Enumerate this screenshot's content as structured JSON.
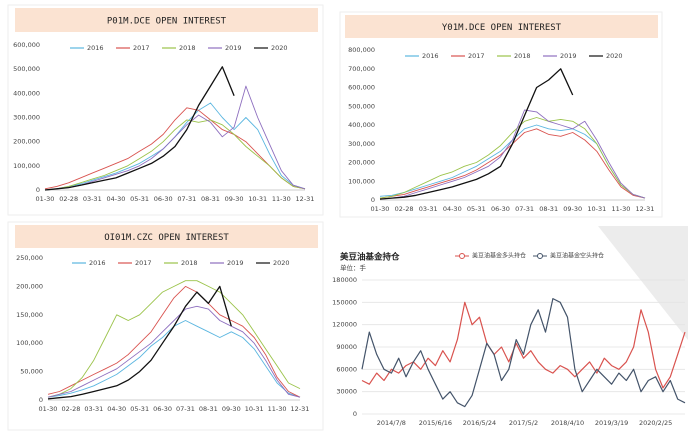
{
  "chart_data": [
    {
      "type": "line",
      "title": "P01M.DCE   OPEN INTEREST",
      "categories": [
        "01-30",
        null,
        "02-28",
        null,
        "03-31",
        null,
        "04-30",
        null,
        "05-31",
        null,
        "06-30",
        null,
        "07-31",
        null,
        "08-31",
        null,
        "09-30",
        null,
        "10-31",
        null,
        "11-30",
        null,
        "12-31"
      ],
      "ylim": [
        0,
        600000
      ],
      "yticks": [
        0,
        {
          "value": 100000,
          "label": "100,000"
        },
        {
          "value": 200000,
          "label": "200,000"
        },
        {
          "value": 300000,
          "label": "300,000"
        },
        {
          "value": 400000,
          "label": "400,000"
        },
        {
          "value": 500000,
          "label": "500,000"
        },
        {
          "value": 600000,
          "label": "600,000"
        }
      ],
      "series": [
        {
          "name": "2016",
          "color": "#5bb6e0",
          "values": [
            0,
            5000,
            15000,
            25000,
            40000,
            55000,
            70000,
            90000,
            110000,
            140000,
            170000,
            220000,
            280000,
            330000,
            360000,
            300000,
            250000,
            300000,
            250000,
            150000,
            60000,
            20000,
            5000
          ]
        },
        {
          "name": "2017",
          "color": "#d9534f",
          "values": [
            5000,
            15000,
            30000,
            50000,
            70000,
            90000,
            110000,
            130000,
            160000,
            190000,
            230000,
            290000,
            340000,
            330000,
            290000,
            250000,
            230000,
            200000,
            150000,
            100000,
            50000,
            15000,
            5000
          ]
        },
        {
          "name": "2018",
          "color": "#9bc34a",
          "values": [
            0,
            5000,
            15000,
            30000,
            45000,
            60000,
            80000,
            100000,
            130000,
            160000,
            200000,
            250000,
            290000,
            280000,
            290000,
            270000,
            230000,
            180000,
            140000,
            100000,
            50000,
            15000,
            5000
          ]
        },
        {
          "name": "2019",
          "color": "#8e6fbf",
          "values": [
            0,
            5000,
            10000,
            20000,
            35000,
            50000,
            65000,
            80000,
            100000,
            130000,
            170000,
            220000,
            270000,
            310000,
            280000,
            220000,
            260000,
            430000,
            300000,
            190000,
            80000,
            20000,
            5000
          ]
        },
        {
          "name": "2020",
          "color": "#111111",
          "values": [
            0,
            5000,
            10000,
            20000,
            30000,
            40000,
            50000,
            70000,
            90000,
            110000,
            140000,
            180000,
            250000,
            350000,
            430000,
            510000,
            390000,
            null,
            null,
            null,
            null,
            null,
            null
          ]
        }
      ]
    },
    {
      "type": "line",
      "title": "Y01M.DCE   OPEN INTEREST",
      "categories": [
        "01-30",
        null,
        "02-28",
        null,
        "03-31",
        null,
        "04-30",
        null,
        "05-31",
        null,
        "06-30",
        null,
        "07-31",
        null,
        "08-31",
        null,
        "09-30",
        null,
        "10-31",
        null,
        "11-30",
        null,
        "12-31"
      ],
      "ylim": [
        0,
        800000
      ],
      "yticks": [
        0,
        {
          "value": 100000,
          "label": "100,000"
        },
        {
          "value": 200000,
          "label": "200,000"
        },
        {
          "value": 300000,
          "label": "300,000"
        },
        {
          "value": 400000,
          "label": "400,000"
        },
        {
          "value": 500000,
          "label": "500,000"
        },
        {
          "value": 600000,
          "label": "600,000"
        },
        {
          "value": 700000,
          "label": "700,000"
        },
        {
          "value": 800000,
          "label": "800,000"
        }
      ],
      "series": [
        {
          "name": "2016",
          "color": "#5bb6e0",
          "values": [
            20000,
            25000,
            40000,
            60000,
            80000,
            100000,
            120000,
            150000,
            180000,
            220000,
            260000,
            320000,
            380000,
            400000,
            380000,
            370000,
            380000,
            350000,
            300000,
            180000,
            80000,
            30000,
            10000
          ]
        },
        {
          "name": "2017",
          "color": "#d9534f",
          "values": [
            10000,
            20000,
            30000,
            50000,
            70000,
            90000,
            110000,
            130000,
            160000,
            200000,
            240000,
            300000,
            360000,
            380000,
            350000,
            340000,
            360000,
            320000,
            260000,
            160000,
            70000,
            25000,
            10000
          ]
        },
        {
          "name": "2018",
          "color": "#9bc34a",
          "values": [
            10000,
            20000,
            40000,
            70000,
            100000,
            130000,
            150000,
            180000,
            200000,
            240000,
            290000,
            360000,
            420000,
            440000,
            420000,
            430000,
            420000,
            380000,
            300000,
            180000,
            80000,
            30000,
            10000
          ]
        },
        {
          "name": "2019",
          "color": "#8e6fbf",
          "values": [
            5000,
            10000,
            20000,
            40000,
            60000,
            80000,
            100000,
            120000,
            150000,
            180000,
            230000,
            320000,
            480000,
            470000,
            420000,
            400000,
            380000,
            420000,
            320000,
            200000,
            90000,
            30000,
            10000
          ]
        },
        {
          "name": "2020",
          "color": "#111111",
          "values": [
            5000,
            10000,
            15000,
            25000,
            40000,
            55000,
            70000,
            90000,
            110000,
            140000,
            180000,
            300000,
            450000,
            600000,
            640000,
            700000,
            560000,
            null,
            null,
            null,
            null,
            null,
            null
          ]
        }
      ]
    },
    {
      "type": "line",
      "title": "OI01M.CZC   OPEN INTEREST",
      "categories": [
        "01-30",
        null,
        "02-28",
        null,
        "03-31",
        null,
        "04-30",
        null,
        "05-31",
        null,
        "06-30",
        null,
        "07-31",
        null,
        "08-31",
        null,
        "09-30",
        null,
        "10-31",
        null,
        "11-30",
        null,
        "12-31"
      ],
      "ylim": [
        0,
        250000
      ],
      "yticks": [
        0,
        {
          "value": 50000,
          "label": "50,000"
        },
        {
          "value": 100000,
          "label": "100,000"
        },
        {
          "value": 150000,
          "label": "150,000"
        },
        {
          "value": 200000,
          "label": "200,000"
        },
        {
          "value": 250000,
          "label": "250,000"
        }
      ],
      "series": [
        {
          "name": "2016",
          "color": "#5bb6e0",
          "values": [
            5000,
            8000,
            12000,
            18000,
            25000,
            35000,
            45000,
            60000,
            75000,
            95000,
            110000,
            130000,
            140000,
            130000,
            120000,
            110000,
            120000,
            110000,
            90000,
            60000,
            30000,
            12000,
            5000
          ]
        },
        {
          "name": "2017",
          "color": "#d9534f",
          "values": [
            10000,
            15000,
            25000,
            35000,
            45000,
            55000,
            65000,
            80000,
            100000,
            120000,
            150000,
            180000,
            200000,
            190000,
            170000,
            150000,
            140000,
            130000,
            110000,
            80000,
            40000,
            15000,
            5000
          ]
        },
        {
          "name": "2018",
          "color": "#9bc34a",
          "values": [
            5000,
            10000,
            20000,
            40000,
            70000,
            110000,
            150000,
            140000,
            150000,
            170000,
            190000,
            200000,
            210000,
            210000,
            200000,
            190000,
            170000,
            150000,
            120000,
            90000,
            60000,
            30000,
            20000
          ]
        },
        {
          "name": "2019",
          "color": "#8e6fbf",
          "values": [
            5000,
            10000,
            15000,
            25000,
            35000,
            45000,
            55000,
            70000,
            85000,
            100000,
            120000,
            140000,
            160000,
            165000,
            160000,
            140000,
            130000,
            120000,
            100000,
            70000,
            35000,
            10000,
            5000
          ]
        },
        {
          "name": "2020",
          "color": "#111111",
          "values": [
            2000,
            4000,
            6000,
            10000,
            15000,
            20000,
            25000,
            35000,
            50000,
            70000,
            100000,
            130000,
            165000,
            190000,
            170000,
            200000,
            130000,
            null,
            null,
            null,
            null,
            null,
            null
          ]
        }
      ]
    },
    {
      "type": "line",
      "title": "美豆油基金持仓",
      "subtitle": "单位：手",
      "grid": true,
      "categories": [
        null,
        null,
        null,
        null,
        "2014/7/8",
        null,
        null,
        null,
        null,
        null,
        "2015/6/16",
        null,
        null,
        null,
        null,
        null,
        "2016/5/24",
        null,
        null,
        null,
        null,
        null,
        "2017/5/2",
        null,
        null,
        null,
        null,
        null,
        "2018/4/10",
        null,
        null,
        null,
        null,
        null,
        "2019/3/19",
        null,
        null,
        null,
        null,
        null,
        "2020/2/25",
        null,
        null,
        null,
        null
      ],
      "ylim": [
        0,
        180000
      ],
      "yticks": [
        0,
        30000,
        60000,
        90000,
        120000,
        150000,
        180000
      ],
      "series": [
        {
          "name": "美豆油基金多头持仓",
          "color": "#d9534f",
          "values": [
            45000,
            40000,
            55000,
            45000,
            60000,
            55000,
            65000,
            70000,
            60000,
            75000,
            65000,
            85000,
            70000,
            100000,
            150000,
            120000,
            130000,
            95000,
            80000,
            90000,
            70000,
            95000,
            75000,
            85000,
            70000,
            60000,
            55000,
            65000,
            60000,
            50000,
            60000,
            70000,
            55000,
            75000,
            65000,
            60000,
            70000,
            90000,
            140000,
            110000,
            60000,
            35000,
            50000,
            80000,
            110000
          ]
        },
        {
          "name": "美豆油基金空头持仓",
          "color": "#44546a",
          "values": [
            60000,
            110000,
            80000,
            60000,
            55000,
            75000,
            50000,
            70000,
            85000,
            60000,
            40000,
            20000,
            30000,
            15000,
            10000,
            25000,
            60000,
            95000,
            80000,
            45000,
            60000,
            100000,
            80000,
            120000,
            140000,
            110000,
            155000,
            150000,
            130000,
            60000,
            30000,
            45000,
            60000,
            50000,
            40000,
            55000,
            45000,
            60000,
            30000,
            45000,
            50000,
            30000,
            45000,
            20000,
            15000
          ]
        }
      ]
    }
  ]
}
